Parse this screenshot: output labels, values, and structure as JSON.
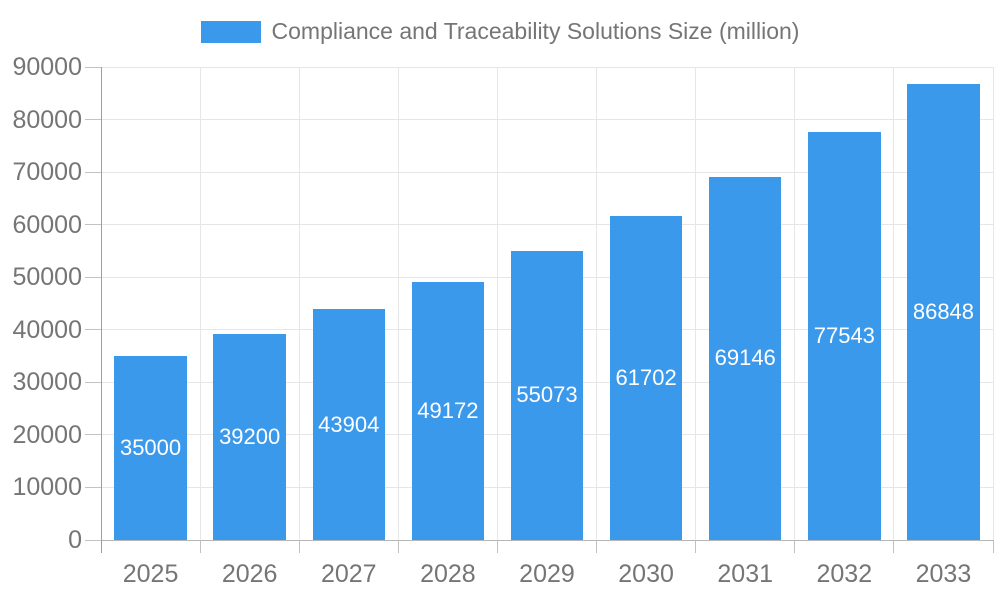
{
  "chart_data": {
    "type": "bar",
    "title": "Compliance and Traceability Solutions Size (million)",
    "categories": [
      "2025",
      "2026",
      "2027",
      "2028",
      "2029",
      "2030",
      "2031",
      "2032",
      "2033"
    ],
    "values": [
      35000,
      39200,
      43904,
      49172,
      55073,
      61702,
      69146,
      77543,
      86848
    ],
    "series": [
      {
        "name": "Compliance and Traceability Solutions Size (million)",
        "values": [
          35000,
          39200,
          43904,
          49172,
          55073,
          61702,
          69146,
          77543,
          86848
        ]
      }
    ],
    "xlabel": "",
    "ylabel": "",
    "ylim": [
      0,
      90000
    ],
    "ytick_step": 10000,
    "ytick_labels": [
      "0",
      "10000",
      "20000",
      "30000",
      "40000",
      "50000",
      "60000",
      "70000",
      "80000",
      "90000"
    ],
    "grid": true,
    "legend_position": "top",
    "value_labels_shown": true
  },
  "legend": {
    "label": "Compliance and Traceability Solutions Size (million)",
    "swatch_color": "#3b99ec"
  },
  "colors": {
    "background": "#ffffff",
    "bar": "#3b99ec",
    "value_label": "#ffffff",
    "gridline": "#e6e6e6",
    "axis_line": "#9e9e9e",
    "tick": "#c2c2c2",
    "axis_text": "#757575",
    "legend_text": "#757575"
  }
}
